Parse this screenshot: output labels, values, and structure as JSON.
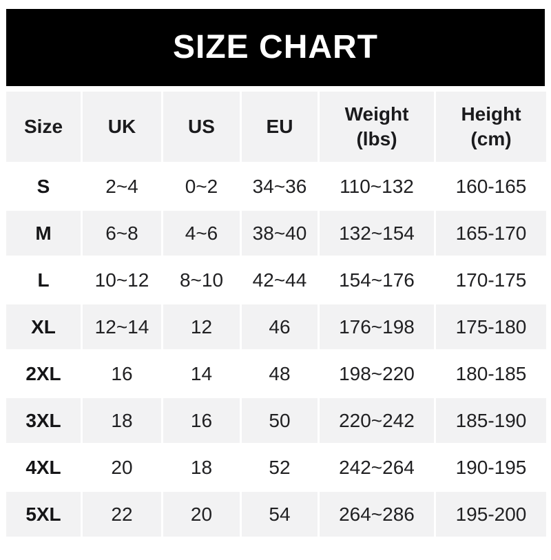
{
  "banner": {
    "title": "SIZE CHART",
    "bg_color": "#000000",
    "text_color": "#ffffff"
  },
  "table": {
    "columns": [
      {
        "key": "size",
        "label": "Size"
      },
      {
        "key": "uk",
        "label": "UK"
      },
      {
        "key": "us",
        "label": "US"
      },
      {
        "key": "eu",
        "label": "EU"
      },
      {
        "key": "weight",
        "label": "Weight\n(lbs)"
      },
      {
        "key": "height",
        "label": "Height\n(cm)"
      }
    ],
    "rows": [
      [
        "S",
        "2~4",
        "0~2",
        "34~36",
        "110~132",
        "160-165"
      ],
      [
        "M",
        "6~8",
        "4~6",
        "38~40",
        "132~154",
        "165-170"
      ],
      [
        "L",
        "10~12",
        "8~10",
        "42~44",
        "154~176",
        "170-175"
      ],
      [
        "XL",
        "12~14",
        "12",
        "46",
        "176~198",
        "175-180"
      ],
      [
        "2XL",
        "16",
        "14",
        "48",
        "198~220",
        "180-185"
      ],
      [
        "3XL",
        "18",
        "16",
        "50",
        "220~242",
        "185-190"
      ],
      [
        "4XL",
        "20",
        "18",
        "52",
        "242~264",
        "190-195"
      ],
      [
        "5XL",
        "22",
        "20",
        "54",
        "264~286",
        "195-200"
      ]
    ]
  },
  "colors": {
    "row_alt_bg": "#f2f2f3",
    "row_base_bg": "#ffffff",
    "text": "#202022",
    "banner_bg": "#000000",
    "banner_text": "#ffffff"
  },
  "chart_data": {
    "type": "table",
    "title": "SIZE CHART",
    "columns": [
      "Size",
      "UK",
      "US",
      "EU",
      "Weight (lbs)",
      "Height (cm)"
    ],
    "rows": [
      [
        "S",
        "2~4",
        "0~2",
        "34~36",
        "110~132",
        "160-165"
      ],
      [
        "M",
        "6~8",
        "4~6",
        "38~40",
        "132~154",
        "165-170"
      ],
      [
        "L",
        "10~12",
        "8~10",
        "42~44",
        "154~176",
        "170-175"
      ],
      [
        "XL",
        "12~14",
        "12",
        "46",
        "176~198",
        "175-180"
      ],
      [
        "2XL",
        "16",
        "14",
        "48",
        "198~220",
        "180-185"
      ],
      [
        "3XL",
        "18",
        "16",
        "50",
        "220~242",
        "185-190"
      ],
      [
        "4XL",
        "20",
        "18",
        "52",
        "242~264",
        "190-195"
      ],
      [
        "5XL",
        "22",
        "20",
        "54",
        "264~286",
        "195-200"
      ]
    ],
    "layout": {
      "header_fill": "#f2f2f3",
      "alternating_rows": true,
      "grid": "white gutters between cells, no borders"
    }
  }
}
